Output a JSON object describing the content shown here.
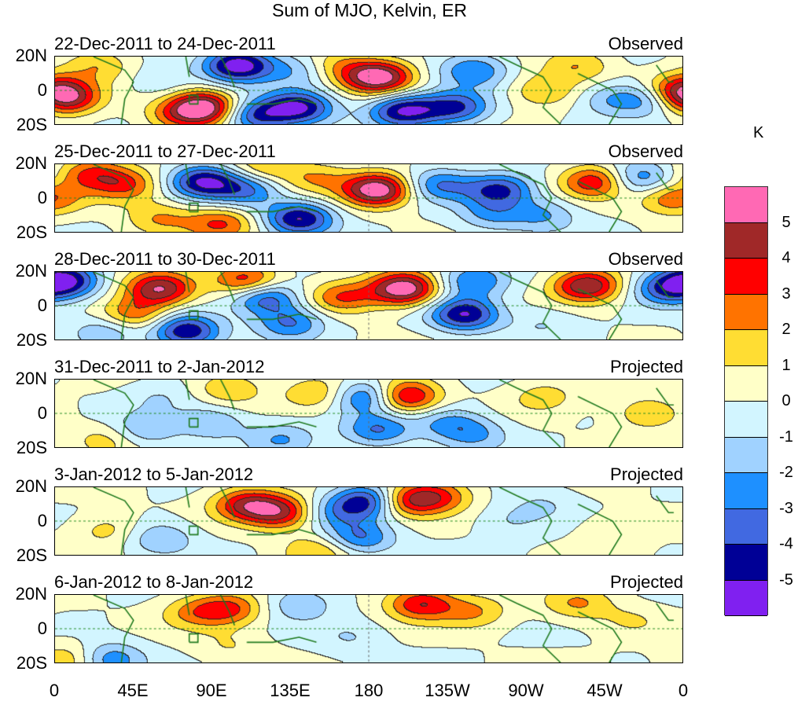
{
  "chart_data": {
    "type": "heatmap",
    "title": "Sum of MJO, Kelvin, ER",
    "units": "K",
    "xlim": [
      0,
      360
    ],
    "ylim": [
      -20,
      20
    ],
    "xticks": [
      "0",
      "45E",
      "90E",
      "135E",
      "180",
      "135W",
      "90W",
      "45W",
      "0"
    ],
    "yticks": [
      "20N",
      "0",
      "20S"
    ],
    "levels": [
      "5",
      "4",
      "3",
      "2",
      "1",
      "0",
      "-1",
      "-2",
      "-3",
      "-4",
      "-5"
    ],
    "colors": [
      "#ff69b4",
      "#a02828",
      "#ff0000",
      "#ff7300",
      "#ffdd33",
      "#ffffc8",
      "#d2f5ff",
      "#a0d2ff",
      "#1e90ff",
      "#4169e1",
      "#000096",
      "#8020f0"
    ],
    "panels": [
      {
        "period": "22-Dec-2011 to 24-Dec-2011",
        "kind": "Observed",
        "anomalies": [
          [
            5,
            -5,
            4
          ],
          [
            25,
            15,
            2
          ],
          [
            70,
            -15,
            2
          ],
          [
            85,
            -10,
            6
          ],
          [
            105,
            15,
            -6
          ],
          [
            115,
            -15,
            -4
          ],
          [
            140,
            -10,
            -5
          ],
          [
            140,
            12,
            -2
          ],
          [
            185,
            8,
            6
          ],
          [
            200,
            -12,
            -5
          ],
          [
            230,
            -10,
            -4
          ],
          [
            240,
            12,
            -3
          ],
          [
            280,
            0,
            2
          ],
          [
            300,
            15,
            2
          ],
          [
            320,
            -5,
            -2
          ],
          [
            345,
            -5,
            -3
          ],
          [
            358,
            0,
            4
          ],
          [
            60,
            5,
            -1
          ],
          [
            160,
            15,
            2
          ]
        ]
      },
      {
        "period": "25-Dec-2011 to 27-Dec-2011",
        "kind": "Observed",
        "anomalies": [
          [
            40,
            8,
            3
          ],
          [
            20,
            15,
            3
          ],
          [
            85,
            10,
            -5
          ],
          [
            95,
            -15,
            3
          ],
          [
            110,
            5,
            -3
          ],
          [
            140,
            -12,
            -5
          ],
          [
            150,
            12,
            2
          ],
          [
            185,
            5,
            6
          ],
          [
            220,
            8,
            -3
          ],
          [
            255,
            5,
            -4
          ],
          [
            280,
            -10,
            -2
          ],
          [
            310,
            10,
            4
          ],
          [
            335,
            12,
            -3
          ],
          [
            355,
            0,
            3
          ],
          [
            60,
            -12,
            2
          ],
          [
            120,
            18,
            2
          ],
          [
            250,
            -10,
            -2
          ]
        ]
      },
      {
        "period": "28-Dec-2011 to 30-Dec-2011",
        "kind": "Observed",
        "anomalies": [
          [
            5,
            15,
            -5
          ],
          [
            45,
            -5,
            3
          ],
          [
            60,
            10,
            5
          ],
          [
            75,
            -15,
            -5
          ],
          [
            110,
            15,
            4
          ],
          [
            120,
            5,
            -4
          ],
          [
            135,
            -10,
            -3
          ],
          [
            165,
            5,
            3
          ],
          [
            200,
            10,
            6
          ],
          [
            235,
            -5,
            -5
          ],
          [
            240,
            15,
            -3
          ],
          [
            305,
            12,
            5
          ],
          [
            350,
            10,
            -3
          ],
          [
            30,
            -15,
            -2
          ],
          [
            280,
            -10,
            -1
          ]
        ]
      },
      {
        "period": "31-Dec-2011 to 2-Jan-2012",
        "kind": "Projected",
        "anomalies": [
          [
            30,
            -15,
            1.5
          ],
          [
            50,
            -10,
            -2
          ],
          [
            90,
            -5,
            -2
          ],
          [
            100,
            15,
            2
          ],
          [
            150,
            12,
            2
          ],
          [
            180,
            10,
            -4
          ],
          [
            200,
            10,
            5
          ],
          [
            185,
            -10,
            -3
          ],
          [
            225,
            -5,
            -2
          ],
          [
            240,
            -12,
            -2
          ],
          [
            280,
            10,
            1.5
          ],
          [
            340,
            0,
            2
          ],
          [
            60,
            10,
            -1
          ],
          [
            130,
            -15,
            -2
          ]
        ]
      },
      {
        "period": "3-Jan-2012 to 5-Jan-2012",
        "kind": "Projected",
        "anomalies": [
          [
            30,
            -5,
            1.5
          ],
          [
            60,
            -10,
            -2
          ],
          [
            110,
            10,
            4
          ],
          [
            130,
            5,
            4
          ],
          [
            160,
            5,
            -2
          ],
          [
            175,
            -10,
            -3
          ],
          [
            180,
            12,
            -5
          ],
          [
            200,
            12,
            4
          ],
          [
            220,
            15,
            3
          ],
          [
            260,
            0,
            -1
          ],
          [
            320,
            -5,
            1
          ],
          [
            150,
            -18,
            2
          ],
          [
            280,
            10,
            -1
          ]
        ]
      },
      {
        "period": "6-Jan-2012 to 8-Jan-2012",
        "kind": "Projected",
        "anomalies": [
          [
            30,
            -18,
            -3
          ],
          [
            80,
            10,
            2
          ],
          [
            100,
            12,
            3
          ],
          [
            140,
            15,
            -2
          ],
          [
            170,
            -5,
            -1
          ],
          [
            210,
            15,
            4
          ],
          [
            240,
            10,
            2
          ],
          [
            300,
            15,
            2
          ],
          [
            330,
            5,
            1
          ],
          [
            10,
            -18,
            2
          ],
          [
            100,
            -10,
            1
          ]
        ]
      }
    ]
  }
}
